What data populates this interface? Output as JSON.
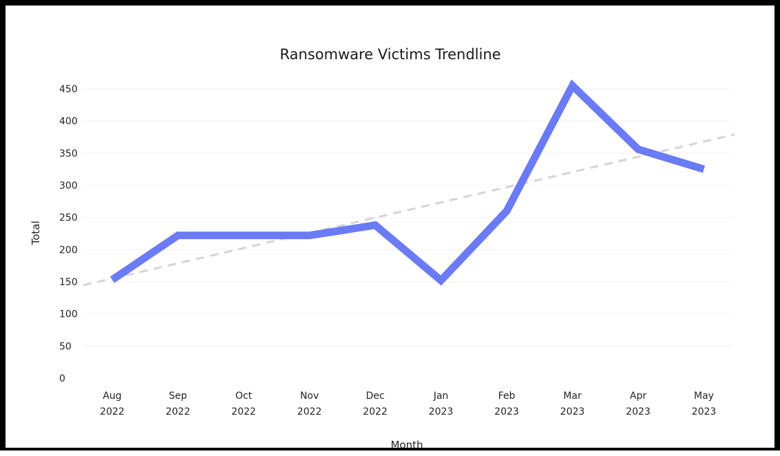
{
  "chart_data": {
    "type": "line",
    "title": "Ransomware Victims Trendline",
    "xlabel": "Month",
    "ylabel": "Total",
    "ylim": [
      0,
      450
    ],
    "yticks": [
      0,
      50,
      100,
      150,
      200,
      250,
      300,
      350,
      400,
      450
    ],
    "categories": [
      [
        "Aug",
        "2022"
      ],
      [
        "Sep",
        "2022"
      ],
      [
        "Oct",
        "2022"
      ],
      [
        "Nov",
        "2022"
      ],
      [
        "Dec",
        "2022"
      ],
      [
        "Jan",
        "2023"
      ],
      [
        "Feb",
        "2023"
      ],
      [
        "Mar",
        "2023"
      ],
      [
        "Apr",
        "2023"
      ],
      [
        "May",
        "2023"
      ]
    ],
    "series": [
      {
        "values": [
          153,
          222,
          222,
          222,
          238,
          152,
          260,
          455,
          356,
          325
        ],
        "color": "#6a7bf5"
      }
    ],
    "trendline": {
      "style": "dashed",
      "color": "#d4d4d4",
      "start": 155,
      "end": 368
    },
    "grid": "horizontal",
    "legend": "none"
  }
}
